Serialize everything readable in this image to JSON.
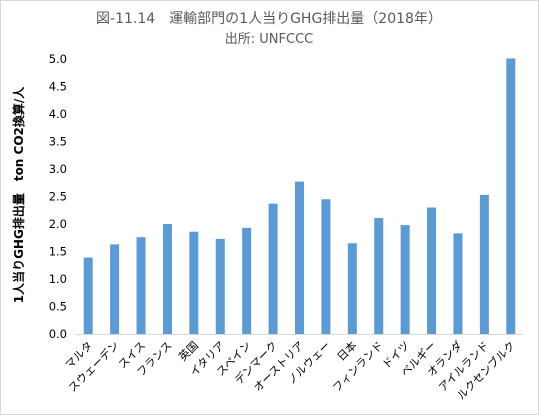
{
  "chart_data": {
    "type": "bar",
    "title": "図-11.14　運輸部門の1人当りGHG排出量（2018年）",
    "subtitle": "出所: UNFCCC",
    "xlabel": "",
    "ylabel": "1人当りGHG排出量　ton CO2換算/人",
    "ylim": [
      0,
      5
    ],
    "ytick_step": 0.5,
    "ytick_labels": [
      "0.0",
      "0.5",
      "1.0",
      "1.5",
      "2.0",
      "2.5",
      "3.0",
      "3.5",
      "4.0",
      "4.5",
      "5.0"
    ],
    "grid": false,
    "legend": "none",
    "bar_color": "#5b9bd5",
    "categories": [
      "マルタ",
      "スウェーデン",
      "スイス",
      "フランス",
      "英国",
      "イタリア",
      "スペイン",
      "デンマーク",
      "オーストリア",
      "ノルウェー",
      "日本",
      "フィンランド",
      "ドイツ",
      "ベルギー",
      "オランダ",
      "アイルランド",
      "ルクセンブルク"
    ],
    "values": [
      1.39,
      1.63,
      1.76,
      2.0,
      1.86,
      1.73,
      1.93,
      2.37,
      2.77,
      2.45,
      1.65,
      2.11,
      1.98,
      2.3,
      1.83,
      2.53,
      5.01
    ]
  }
}
